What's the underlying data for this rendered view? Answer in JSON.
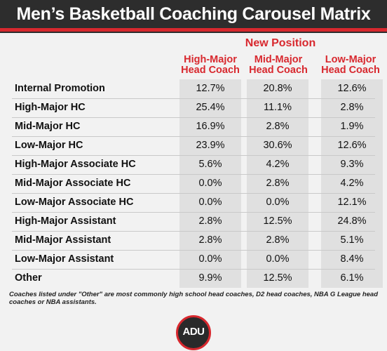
{
  "header": {
    "title": "Men’s Basketball Coaching Carousel Matrix"
  },
  "colors": {
    "accent": "#d8282e",
    "header_bg": "#2d2d2d",
    "column_bg": "#e0e0e0"
  },
  "chart_data": {
    "type": "table",
    "title": "Men’s Basketball Coaching Carousel Matrix",
    "column_group_label": "New Position",
    "columns": [
      {
        "line1": "High-Major",
        "line2": "Head Coach"
      },
      {
        "line1": "Mid-Major",
        "line2": "Head Coach"
      },
      {
        "line1": "Low-Major",
        "line2": "Head Coach"
      }
    ],
    "rows": [
      {
        "label": "Internal Promotion",
        "values": [
          "12.7%",
          "20.8%",
          "12.6%"
        ]
      },
      {
        "label": "High-Major HC",
        "values": [
          "25.4%",
          "11.1%",
          "2.8%"
        ]
      },
      {
        "label": "Mid-Major HC",
        "values": [
          "16.9%",
          "2.8%",
          "1.9%"
        ]
      },
      {
        "label": "Low-Major HC",
        "values": [
          "23.9%",
          "30.6%",
          "12.6%"
        ]
      },
      {
        "label": "High-Major Associate HC",
        "values": [
          "5.6%",
          "4.2%",
          "9.3%"
        ]
      },
      {
        "label": "Mid-Major Associate HC",
        "values": [
          "0.0%",
          "2.8%",
          "4.2%"
        ]
      },
      {
        "label": "Low-Major Associate HC",
        "values": [
          "0.0%",
          "0.0%",
          "12.1%"
        ]
      },
      {
        "label": "High-Major Assistant",
        "values": [
          "2.8%",
          "12.5%",
          "24.8%"
        ]
      },
      {
        "label": "Mid-Major Assistant",
        "values": [
          "2.8%",
          "2.8%",
          "5.1%"
        ]
      },
      {
        "label": "Low-Major Assistant",
        "values": [
          "0.0%",
          "0.0%",
          "8.4%"
        ]
      },
      {
        "label": "Other",
        "values": [
          "9.9%",
          "12.5%",
          "6.1%"
        ]
      }
    ]
  },
  "footnote": "Coaches listed under \"Other\" are most commonly high school head coaches, D2 head coaches, NBA G League head coaches or NBA assistants.",
  "logo": {
    "text": "ADU"
  }
}
